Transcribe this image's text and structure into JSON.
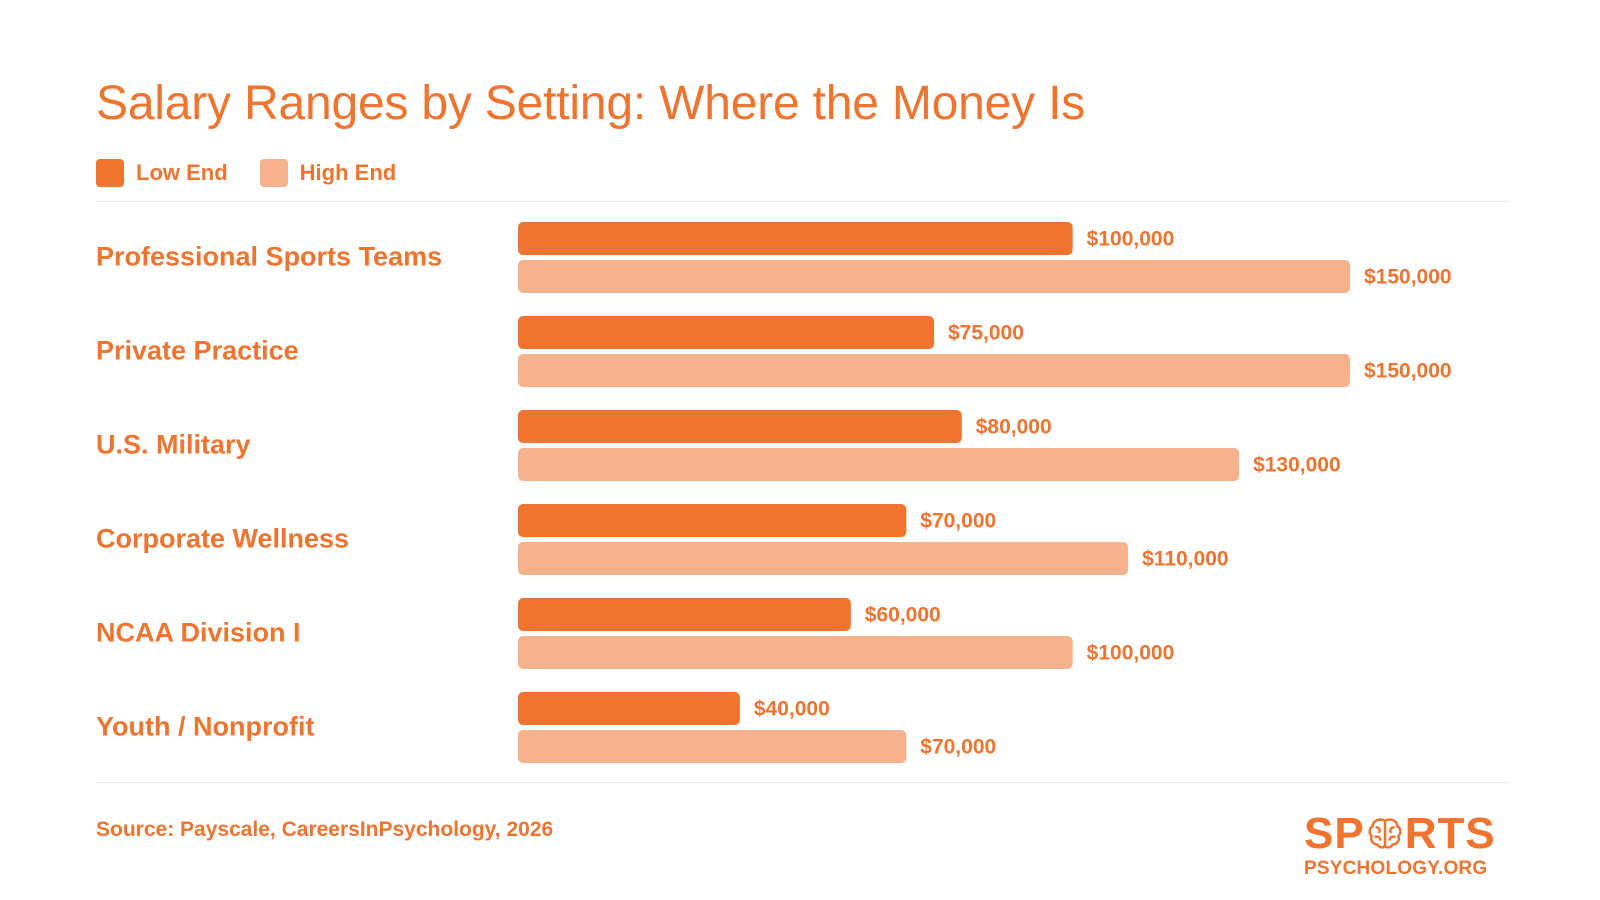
{
  "title": "Salary Ranges by Setting: Where the Money Is",
  "legend": {
    "low_label": "Low End",
    "high_label": "High End"
  },
  "colors": {
    "low": "#EE7430",
    "high": "#F5B28C",
    "text": "#EE7430"
  },
  "chart_data": {
    "type": "bar",
    "orientation": "horizontal",
    "title": "Salary Ranges by Setting: Where the Money Is",
    "categories": [
      "Professional Sports Teams",
      "Private Practice",
      "U.S. Military",
      "Corporate Wellness",
      "NCAA Division I",
      "Youth / Nonprofit"
    ],
    "series": [
      {
        "name": "Low End",
        "values": [
          100000,
          75000,
          80000,
          70000,
          60000,
          40000
        ],
        "labels": [
          "$100,000",
          "$75,000",
          "$80,000",
          "$70,000",
          "$60,000",
          "$40,000"
        ]
      },
      {
        "name": "High End",
        "values": [
          150000,
          150000,
          130000,
          110000,
          100000,
          70000
        ],
        "labels": [
          "$150,000",
          "$150,000",
          "$130,000",
          "$110,000",
          "$100,000",
          "$70,000"
        ]
      }
    ],
    "xlim": [
      0,
      150000
    ],
    "grid": false,
    "legend_position": "top-left"
  },
  "source": "Source: Payscale, CareersInPsychology, 2026",
  "logo": {
    "line1_left": "SP",
    "line1_right": "RTS",
    "line2": "PSYCHOLOGY.ORG",
    "icon": "brain-icon"
  }
}
